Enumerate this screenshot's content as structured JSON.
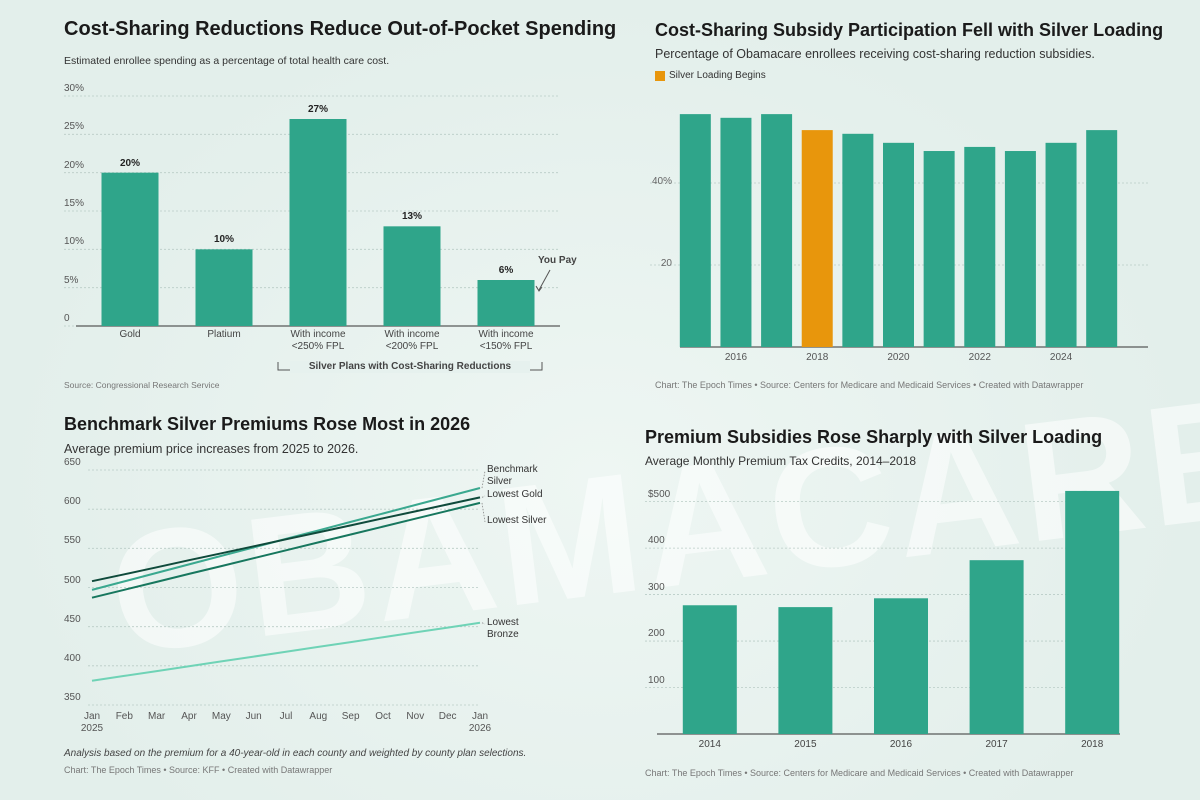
{
  "watermark": "OBAMACARE",
  "chart_data": [
    {
      "type": "bar",
      "title": "Cost-Sharing Reductions Reduce Out-of-Pocket Spending",
      "subtitle": "Estimated enrollee spending as a percentage of total health care cost.",
      "categories": [
        "Gold",
        "Platium",
        "With income <250% FPL",
        "With income <200% FPL",
        "With income <150% FPL"
      ],
      "values": [
        20,
        10,
        27,
        13,
        6
      ],
      "value_labels": [
        "20%",
        "10%",
        "27%",
        "13%",
        "6%"
      ],
      "color": "#2fa58a",
      "ylim": [
        0,
        30
      ],
      "yticks": [
        0,
        {
          "value": 5,
          "label": "5%"
        },
        {
          "value": 10,
          "label": "10%"
        },
        {
          "value": 15,
          "label": "15%"
        },
        {
          "value": 20,
          "label": "20%"
        },
        {
          "value": 25,
          "label": "25%"
        },
        {
          "value": 30,
          "label": "30%"
        }
      ],
      "grid": true,
      "annotations": [
        "You Pay",
        "Silver Plans with Cost-Sharing Reductions"
      ],
      "source": "Source: Congressional Research Service"
    },
    {
      "type": "bar",
      "title": "Cost-Sharing Subsidy Participation Fell with Silver Loading",
      "subtitle": "Percentage of Obamacare enrollees receiving cost-sharing reduction subsidies.",
      "legend": {
        "name": "Silver Loading Begins",
        "color": "#e8960c"
      },
      "x": [
        2015,
        2016,
        2017,
        2018,
        2019,
        2020,
        2021,
        2022,
        2023,
        2024,
        2025
      ],
      "values": [
        56.8,
        55.9,
        56.8,
        52.9,
        52,
        49.8,
        47.8,
        48.8,
        47.8,
        49.8,
        52.9
      ],
      "colors": [
        "#2fa58a",
        "#2fa58a",
        "#2fa58a",
        "#e8960c",
        "#2fa58a",
        "#2fa58a",
        "#2fa58a",
        "#2fa58a",
        "#2fa58a",
        "#2fa58a",
        "#2fa58a"
      ],
      "xlim": [
        2014.5,
        2025.5
      ],
      "xticks": [
        2016,
        2018,
        2020,
        2022,
        2024
      ],
      "ylim": [
        0,
        60
      ],
      "yticks": [
        20,
        {
          "value": 40,
          "label": "40%"
        }
      ],
      "grid": true,
      "source": "Chart: The Epoch Times • Source: Centers for Medicare and Medicaid Services • Created with Datawrapper"
    },
    {
      "type": "line",
      "title": "Benchmark Silver Premiums Rose Most in 2026",
      "subtitle": "Average premium price increases from 2025 to 2026.",
      "categories": [
        "Jan 2025",
        "Feb",
        "Mar",
        "Apr",
        "May",
        "Jun",
        "Jul",
        "Aug",
        "Sep",
        "Oct",
        "Nov",
        "Dec",
        "Jan 2026"
      ],
      "series": [
        {
          "name": "Benchmark Silver",
          "color": "#3aa88f",
          "values": [
            497,
            507.8,
            518.7,
            529.5,
            540.3,
            551.2,
            562,
            572.8,
            583.7,
            594.5,
            605.3,
            616.2,
            627
          ]
        },
        {
          "name": "Lowest Gold",
          "color": "#0f4a3b",
          "values": [
            508,
            516.9,
            525.8,
            534.8,
            543.7,
            552.6,
            561.5,
            570.4,
            579.3,
            588.3,
            597.2,
            606.1,
            615
          ]
        },
        {
          "name": "Lowest Silver",
          "color": "#17775e",
          "values": [
            487,
            497.1,
            507.2,
            517.3,
            527.3,
            537.4,
            547.5,
            557.6,
            567.7,
            577.8,
            587.8,
            597.9,
            608
          ]
        },
        {
          "name": "Lowest Bronze",
          "color": "#6fd3b6",
          "values": [
            381,
            387.2,
            393.3,
            399.5,
            405.7,
            411.8,
            418,
            424.2,
            430.3,
            436.5,
            442.7,
            448.8,
            455
          ]
        }
      ],
      "ylim": [
        350,
        650
      ],
      "yticks": [
        350,
        400,
        450,
        500,
        550,
        600,
        650
      ],
      "grid": true,
      "note": "Analysis based on the premium for a 40-year-old in each county and weighted by county plan selections.",
      "source": "Chart: The Epoch Times  • Source: KFF • Created with Datawrapper"
    },
    {
      "type": "bar",
      "title": "Premium Subsidies Rose Sharply with Silver Loading",
      "subtitle": "Average Monthly Premium Tax Credits, 2014–2018",
      "categories": [
        "2014",
        "2015",
        "2016",
        "2017",
        "2018"
      ],
      "values": [
        277,
        273,
        292,
        374,
        523
      ],
      "color": "#2fa58a",
      "ylim": [
        0,
        525
      ],
      "yticks": [
        100,
        200,
        300,
        400,
        {
          "value": 500,
          "label": "$500"
        }
      ],
      "grid": true,
      "source": "Chart: The Epoch Times  • Source: Centers for Medicare and Medicaid Services • Created with Datawrapper"
    }
  ]
}
